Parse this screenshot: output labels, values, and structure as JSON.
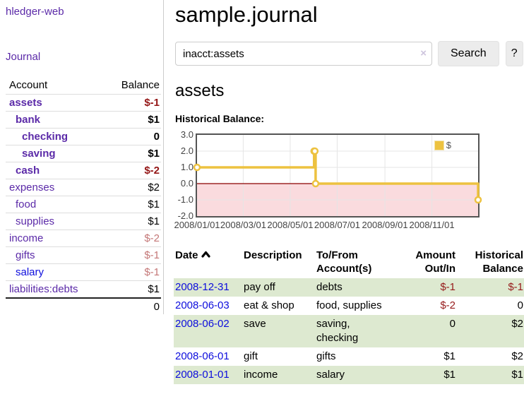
{
  "app_title": "hledger-web",
  "sidebar": {
    "journal_link": "Journal",
    "account_header": "Account",
    "balance_header": "Balance",
    "accounts": [
      {
        "name": "assets",
        "balance": "$-1",
        "depth": 1,
        "bold": true,
        "balance_style": "neg-strong"
      },
      {
        "name": "bank",
        "balance": "$1",
        "depth": 2,
        "bold": true,
        "balance_style": "pos"
      },
      {
        "name": "checking",
        "balance": "0",
        "depth": 3,
        "bold": true,
        "balance_style": "pos"
      },
      {
        "name": "saving",
        "balance": "$1",
        "depth": 3,
        "bold": true,
        "balance_style": "pos"
      },
      {
        "name": "cash",
        "balance": "$-2",
        "depth": 2,
        "bold": true,
        "balance_style": "neg-strong"
      },
      {
        "name": "expenses",
        "balance": "$2",
        "depth": 1,
        "bold": false,
        "balance_style": "pos"
      },
      {
        "name": "food",
        "balance": "$1",
        "depth": 2,
        "bold": false,
        "balance_style": "pos"
      },
      {
        "name": "supplies",
        "balance": "$1",
        "depth": 2,
        "bold": false,
        "balance_style": "pos"
      },
      {
        "name": "income",
        "balance": "$-2",
        "depth": 1,
        "bold": false,
        "balance_style": "neg-faded"
      },
      {
        "name": "gifts",
        "balance": "$-1",
        "depth": 2,
        "bold": false,
        "balance_style": "neg-faded"
      },
      {
        "name": "salary",
        "balance": "$-1",
        "depth": 2,
        "bold": false,
        "balance_style": "neg-faded",
        "link_color": "blue"
      },
      {
        "name": "liabilities:debts",
        "balance": "$1",
        "depth": 1,
        "bold": false,
        "balance_style": "pos"
      }
    ],
    "total": "0"
  },
  "header": {
    "title": "sample.journal"
  },
  "search": {
    "value": "inacct:assets",
    "clear_icon": "×",
    "search_button": "Search",
    "help_button": "?"
  },
  "account_page": {
    "heading": "assets",
    "chart_title": "Historical Balance:"
  },
  "chart_data": {
    "type": "line",
    "steps": true,
    "title": "Historical Balance",
    "series": [
      {
        "name": "$",
        "color": "#edc240",
        "points": [
          [
            "2008/01/01",
            1
          ],
          [
            "2008/06/01",
            2
          ],
          [
            "2008/06/02",
            2
          ],
          [
            "2008/06/03",
            0
          ],
          [
            "2008/12/31",
            -1
          ]
        ]
      }
    ],
    "xrange": [
      "2008/01/01",
      "2008/12/31"
    ],
    "ylim": [
      -2,
      3
    ],
    "yticks": [
      3.0,
      2.0,
      1.0,
      0.0,
      -1.0,
      -2.0
    ],
    "ytick_labels": [
      "3.0",
      "2.0",
      "1.0",
      "0.0",
      "-1.0",
      "-2.0"
    ],
    "xticks": [
      "2008/01/01",
      "2008/03/01",
      "2008/05/01",
      "2008/07/01",
      "2008/09/01",
      "2008/11/01"
    ],
    "legend_position": "top-right",
    "grid": true,
    "negative_region_color": "#fadbde",
    "zero_line_color": "#8b0000",
    "gridline_color": "#e5e5e5"
  },
  "register": {
    "headers": {
      "date": "Date",
      "description": "Description",
      "accounts": "To/From Account(s)",
      "amount": "Amount Out/In",
      "balance": "Historical Balance"
    },
    "sort": {
      "column": "date",
      "direction": "ascending"
    },
    "rows": [
      {
        "date": "2008-12-31",
        "description": "pay off",
        "accounts": "debts",
        "amount": "$-1",
        "balance": "$-1",
        "amount_neg": true,
        "balance_neg": true,
        "shaded": true
      },
      {
        "date": "2008-06-03",
        "description": "eat & shop",
        "accounts": "food, supplies",
        "amount": "$-2",
        "balance": "0",
        "amount_neg": true,
        "balance_neg": false,
        "shaded": false
      },
      {
        "date": "2008-06-02",
        "description": "save",
        "accounts": "saving, checking",
        "amount": "0",
        "balance": "$2",
        "amount_neg": false,
        "balance_neg": false,
        "shaded": true
      },
      {
        "date": "2008-06-01",
        "description": "gift",
        "accounts": "gifts",
        "amount": "$1",
        "balance": "$2",
        "amount_neg": false,
        "balance_neg": false,
        "shaded": false
      },
      {
        "date": "2008-01-01",
        "description": "income",
        "accounts": "salary",
        "amount": "$1",
        "balance": "$1",
        "amount_neg": false,
        "balance_neg": false,
        "shaded": true
      }
    ]
  },
  "colors": {
    "link_purple": "#5b2aa8",
    "link_blue": "#0d0ddd",
    "negative_strong": "#941616",
    "negative": "#961b1b",
    "negative_faded": "#c47777",
    "row_green": "#dde9d0",
    "series_gold": "#edc240"
  }
}
